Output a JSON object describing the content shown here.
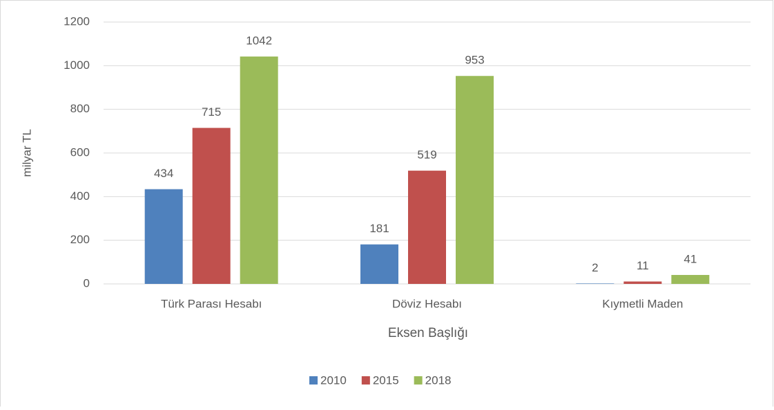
{
  "chart_data": {
    "type": "bar",
    "categories": [
      "Türk Parası Hesabı",
      "Döviz Hesabı",
      "Kıymetli Maden"
    ],
    "series": [
      {
        "name": "2010",
        "color": "#4f81bd",
        "values": [
          434,
          181,
          2
        ]
      },
      {
        "name": "2015",
        "color": "#c0504d",
        "values": [
          715,
          519,
          11
        ]
      },
      {
        "name": "2018",
        "color": "#9bbb59",
        "values": [
          1042,
          953,
          41
        ]
      }
    ],
    "y_label": "milyar TL",
    "x_label": "Eksen Başlığı",
    "ylim": [
      0,
      1200
    ],
    "yticks": [
      0,
      200,
      400,
      600,
      800,
      1000,
      1200
    ],
    "grid": true,
    "legend": "bottom"
  }
}
